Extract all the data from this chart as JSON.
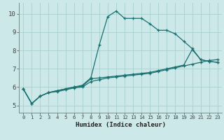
{
  "xlabel": "Humidex (Indice chaleur)",
  "bg_color": "#cce8e8",
  "grid_color": "#aacfcf",
  "line_color": "#1a7070",
  "xlim": [
    -0.5,
    23.5
  ],
  "ylim": [
    4.6,
    10.6
  ],
  "xticks": [
    0,
    1,
    2,
    3,
    4,
    5,
    6,
    7,
    8,
    9,
    10,
    11,
    12,
    13,
    14,
    15,
    16,
    17,
    18,
    19,
    20,
    21,
    22,
    23
  ],
  "yticks": [
    5,
    6,
    7,
    8,
    9,
    10
  ],
  "line1_x": [
    0,
    1,
    2,
    3,
    4,
    5,
    6,
    7,
    8,
    9,
    10,
    11,
    12,
    13,
    14,
    15,
    16,
    17,
    18,
    19,
    20,
    21,
    22,
    23
  ],
  "line1_y": [
    5.9,
    5.1,
    5.5,
    5.7,
    5.8,
    5.9,
    6.0,
    6.1,
    6.5,
    8.3,
    9.85,
    10.15,
    9.75,
    9.75,
    9.75,
    9.45,
    9.1,
    9.1,
    8.9,
    8.5,
    8.1,
    7.5,
    7.4,
    7.35
  ],
  "line2_x": [
    0,
    1,
    2,
    3,
    4,
    5,
    6,
    7,
    8,
    9,
    10,
    11,
    12,
    13,
    14,
    15,
    16,
    17,
    18,
    19,
    20,
    21,
    22,
    23
  ],
  "line2_y": [
    5.9,
    5.1,
    5.5,
    5.7,
    5.8,
    5.9,
    6.0,
    6.05,
    6.45,
    6.5,
    6.55,
    6.6,
    6.65,
    6.7,
    6.75,
    6.8,
    6.9,
    7.0,
    7.1,
    7.2,
    8.05,
    7.5,
    7.4,
    7.35
  ],
  "line3_x": [
    0,
    1,
    2,
    3,
    4,
    5,
    6,
    7,
    8,
    9,
    10,
    11,
    12,
    13,
    14,
    15,
    16,
    17,
    18,
    19,
    20,
    21,
    22,
    23
  ],
  "line3_y": [
    5.9,
    5.1,
    5.5,
    5.7,
    5.75,
    5.85,
    5.95,
    6.0,
    6.3,
    6.4,
    6.5,
    6.55,
    6.6,
    6.65,
    6.7,
    6.75,
    6.85,
    6.95,
    7.05,
    7.15,
    7.25,
    7.35,
    7.45,
    7.5
  ]
}
